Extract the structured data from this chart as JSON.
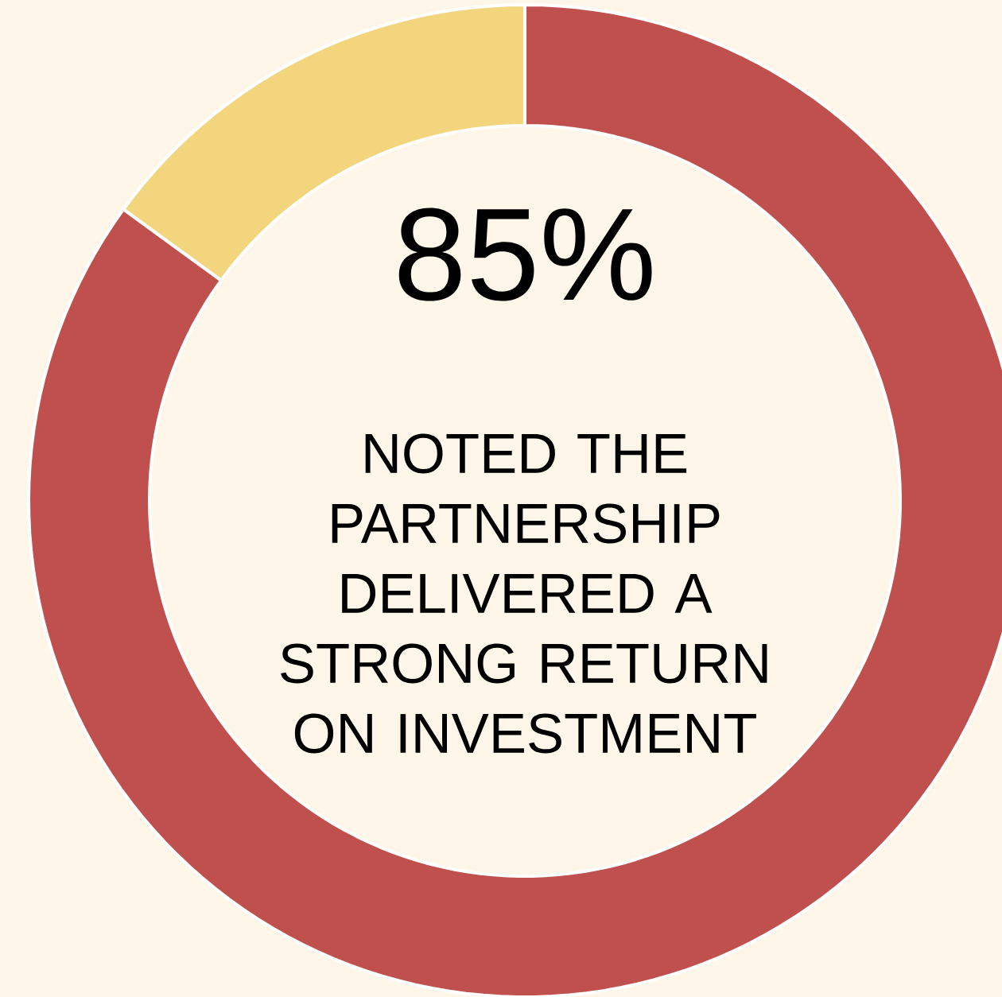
{
  "chart_data": {
    "type": "donut",
    "categories": [
      null,
      null
    ],
    "values": [
      85,
      15
    ],
    "colors": [
      "#c0504d",
      "#f2d57c"
    ],
    "value_labels": [
      "85%",
      null
    ],
    "annotations": [
      "NOTED THE PARTNERSHIP DELIVERED A STRONG RETURN ON INVESTMENT"
    ]
  }
}
